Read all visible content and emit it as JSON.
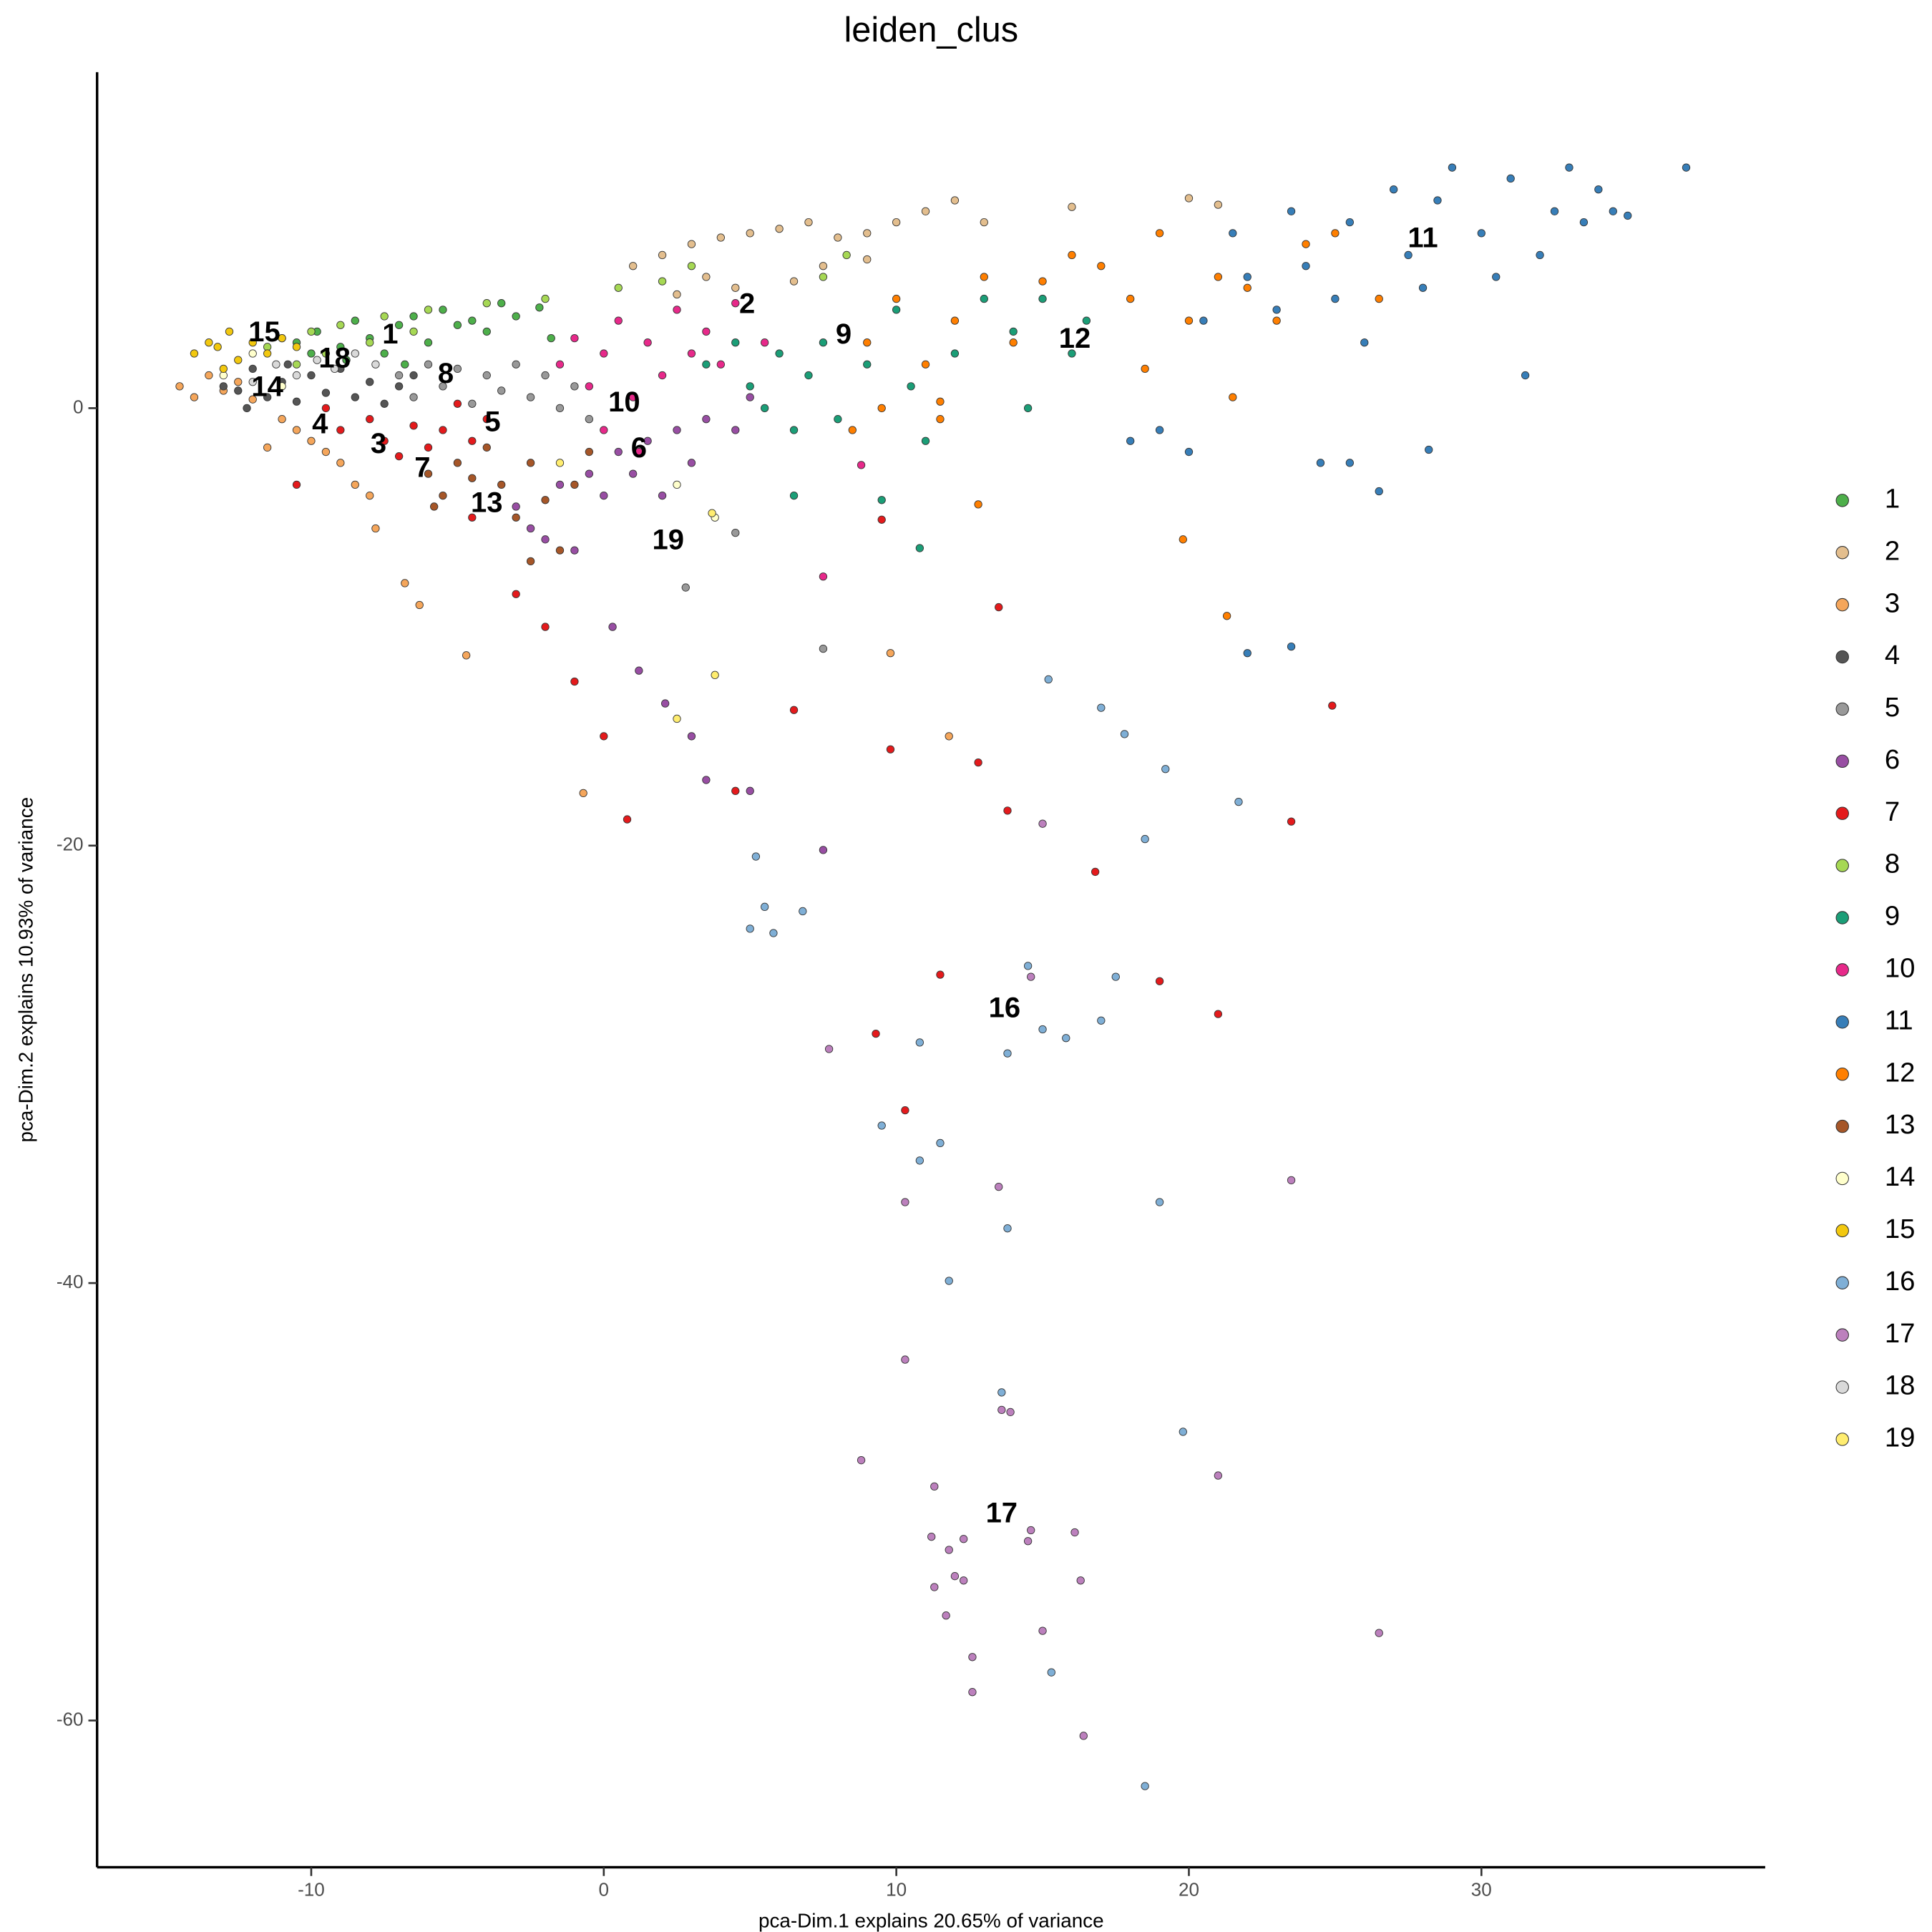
{
  "chart_data": {
    "type": "scatter",
    "title": "leiden_clus",
    "x_label": "pca-Dim.1 explains 20.65% of variance",
    "y_label": "pca-Dim.2 explains 10.93% of variance",
    "xlim": [
      -17.32,
      39.7
    ],
    "ylim": [
      -66.71,
      15.36
    ],
    "xticks": [
      -10,
      0,
      10,
      20,
      30
    ],
    "yticks": [
      0,
      -20,
      -40,
      -60
    ],
    "grid": false,
    "legend": "right",
    "series": [
      {
        "name": "1",
        "color": "#4DAF4A",
        "x": [
          -10.5,
          -9.8,
          -9,
          -8.5,
          -8,
          -7.5,
          -7,
          -6.5,
          -6,
          -5.5,
          -5,
          -4.5,
          -4,
          -3.5,
          -3,
          -2.2,
          -1.8,
          -8.8,
          -10,
          -6.8
        ],
        "y": [
          3,
          3.5,
          2.8,
          4,
          3.2,
          2.5,
          3.8,
          4.2,
          3,
          4.5,
          3.8,
          4,
          3.5,
          4.8,
          4.2,
          4.6,
          3.2,
          2.2,
          2.5,
          2
        ]
      },
      {
        "name": "2",
        "color": "#E3BE8E",
        "x": [
          1,
          2,
          3,
          4,
          5,
          6,
          7,
          8,
          9,
          10,
          11,
          12,
          13,
          16,
          20,
          21,
          4.5,
          6.5,
          3.5,
          2.5,
          7.5,
          9
        ],
        "y": [
          6.5,
          7,
          7.5,
          7.8,
          8,
          8.2,
          8.5,
          7.8,
          8,
          8.5,
          9,
          9.5,
          8.5,
          9.2,
          9.6,
          9.3,
          5.5,
          5.8,
          6,
          5.2,
          6.5,
          6.8
        ]
      },
      {
        "name": "3",
        "color": "#F5A65B",
        "x": [
          -14.5,
          -14,
          -13.5,
          -13,
          -12.5,
          -12,
          -11,
          -10.5,
          -10,
          -9.5,
          -9,
          -8.5,
          -8,
          -7.8,
          -6.8,
          -6.3,
          -4.7,
          -0.7,
          9.8,
          11.8,
          -11.5
        ],
        "y": [
          1,
          0.5,
          1.5,
          0.8,
          1.2,
          0.4,
          -0.5,
          -1,
          -1.5,
          -2,
          -2.5,
          -3.5,
          -4,
          -5.5,
          -8,
          -9,
          -11.3,
          -17.6,
          -11.2,
          -15,
          -1.8
        ]
      },
      {
        "name": "4",
        "color": "#555555",
        "x": [
          -13,
          -12.5,
          -12,
          -11.5,
          -11,
          -10.5,
          -10,
          -9.5,
          -9,
          -8.5,
          -8,
          -7.5,
          -7,
          -6.5,
          -12.2,
          -10.8
        ],
        "y": [
          1,
          0.8,
          1.8,
          0.5,
          1.2,
          0.3,
          1.5,
          0.7,
          1.8,
          0.5,
          1.2,
          0.2,
          1,
          1.5,
          0,
          2
        ]
      },
      {
        "name": "5",
        "color": "#999999",
        "x": [
          -7,
          -6.5,
          -6,
          -5.5,
          -5,
          -4.5,
          -4,
          -3.5,
          -3,
          -2.5,
          -2,
          -1.5,
          -1,
          -0.5,
          4.5,
          7.5,
          2.8
        ],
        "y": [
          1.5,
          0.5,
          2,
          1,
          1.8,
          0.2,
          1.5,
          0.8,
          2,
          0.5,
          1.5,
          0,
          1,
          -0.5,
          -5.7,
          -11,
          -8.2
        ]
      },
      {
        "name": "6",
        "color": "#984EA3",
        "x": [
          -3,
          -2.5,
          -2,
          -1.5,
          -1,
          -0.5,
          0,
          0.5,
          1,
          1.5,
          2,
          2.5,
          3,
          3.5,
          4.5,
          5,
          0.3,
          1.2,
          2.1,
          3,
          3.5,
          5,
          7.5
        ],
        "y": [
          -4.5,
          -5.5,
          -6,
          -3.5,
          -6.5,
          -3,
          -4,
          -2,
          -3,
          -1.5,
          -4,
          -1,
          -2.5,
          -0.5,
          -1,
          0.5,
          -10,
          -12,
          -13.5,
          -15,
          -17,
          -17.5,
          -20.2
        ]
      },
      {
        "name": "7",
        "color": "#E41A1C",
        "x": [
          -9.5,
          -9,
          -8,
          -7.5,
          -7,
          -6.5,
          -6,
          -5.5,
          -5,
          -4.5,
          -4,
          -10.5,
          -4.5,
          -3,
          -2,
          -1,
          0,
          0.8,
          4.5,
          6.5,
          9.8,
          11.5,
          9.3,
          10.3,
          12.8,
          13.8,
          16.8,
          19,
          21,
          23.5,
          24.9,
          13.5,
          9.5
        ],
        "y": [
          0,
          -1,
          -0.5,
          -1.5,
          -2.2,
          -0.8,
          -1.8,
          -1,
          0.2,
          -1.5,
          -0.5,
          -3.5,
          -5,
          -8.5,
          -10,
          -12.5,
          -15,
          -18.8,
          -17.5,
          -13.8,
          -15.6,
          -25.9,
          -28.6,
          -32.1,
          -16.2,
          -18.4,
          -21.2,
          -26.2,
          -27.7,
          -18.9,
          -13.6,
          -9.1,
          -5.1
        ]
      },
      {
        "name": "8",
        "color": "#A6D854",
        "x": [
          -11.5,
          -11,
          -10.5,
          -10,
          -9.5,
          -9,
          -8,
          -7.5,
          -6.5,
          -6,
          -4,
          -2,
          0.5,
          2,
          3,
          7.5,
          8.3
        ],
        "y": [
          2.8,
          3.2,
          2,
          3.5,
          2.5,
          3.8,
          3,
          4.2,
          3.5,
          4.5,
          4.8,
          5,
          5.5,
          5.8,
          6.5,
          6,
          7
        ]
      },
      {
        "name": "9",
        "color": "#1B9E77",
        "x": [
          3.5,
          4.5,
          5,
          5.5,
          6,
          6.5,
          7,
          7.5,
          8,
          9,
          10,
          10.5,
          11,
          12,
          13,
          14,
          14.5,
          15,
          16,
          16.5,
          6.5,
          9.5,
          10.8
        ],
        "y": [
          2,
          3,
          1,
          0,
          2.5,
          -1,
          1.5,
          3,
          -0.5,
          2,
          4.5,
          1,
          -1.5,
          2.5,
          5,
          3.5,
          0,
          5,
          2.5,
          4,
          -4,
          -4.2,
          -6.4
        ]
      },
      {
        "name": "10",
        "color": "#E7298A",
        "x": [
          -1.5,
          -1,
          -0.5,
          0,
          0.5,
          1,
          1.5,
          2,
          2.5,
          3,
          3.5,
          4,
          4.5,
          5.5,
          0,
          1.2,
          8.8,
          7.5
        ],
        "y": [
          2,
          3.2,
          1,
          2.5,
          4,
          0.5,
          3,
          1.5,
          4.5,
          2.5,
          3.5,
          2,
          4.8,
          3,
          -1,
          -2,
          -2.6,
          -7.7
        ]
      },
      {
        "name": "11",
        "color": "#377EB8",
        "x": [
          18,
          19,
          20,
          20.5,
          21.5,
          22,
          23,
          23.5,
          24,
          25,
          25.5,
          26,
          27,
          27.5,
          28,
          28.5,
          29,
          30,
          30.5,
          31,
          31.5,
          32,
          32.5,
          33,
          33.5,
          34,
          34.5,
          35,
          37,
          24.5,
          26.5,
          22,
          23.5,
          25.5,
          28.2
        ],
        "y": [
          -1.5,
          -1,
          -2,
          4,
          8,
          6,
          4.5,
          9,
          6.5,
          5,
          8.5,
          3,
          10,
          7,
          5.5,
          9.5,
          11,
          8,
          6,
          10.5,
          1.5,
          7,
          9,
          11,
          8.5,
          10,
          9,
          8.8,
          11,
          -2.5,
          -3.8,
          -11.2,
          -10.9,
          -2.5,
          -1.9
        ]
      },
      {
        "name": "12",
        "color": "#FF7F00",
        "x": [
          8.5,
          9,
          9.5,
          10,
          11,
          11.5,
          12,
          13,
          14,
          15,
          16,
          17,
          18,
          18.5,
          19,
          20,
          21,
          21.5,
          22,
          23,
          24,
          25,
          26.5,
          19.8,
          21.3,
          12.8,
          11.5
        ],
        "y": [
          -1,
          3,
          0,
          5,
          2,
          0.3,
          4,
          6,
          3,
          5.8,
          7,
          6.5,
          5,
          1.8,
          8,
          4,
          6,
          0.5,
          5.5,
          4,
          7.5,
          8,
          5,
          -6,
          -9.5,
          -4.4,
          -0.5
        ]
      },
      {
        "name": "13",
        "color": "#A65628",
        "x": [
          -6,
          -5.5,
          -5,
          -4.5,
          -4,
          -3.5,
          -3,
          -2.5,
          -2,
          -1.5,
          -1,
          -0.5,
          -2.5,
          -5.8
        ],
        "y": [
          -3,
          -4,
          -2.5,
          -3.2,
          -1.8,
          -3.5,
          -5,
          -2.5,
          -4.2,
          -6.5,
          -3.5,
          -2,
          -7,
          -4.5
        ]
      },
      {
        "name": "14",
        "color": "#FFFFCC",
        "x": [
          -13,
          -12,
          -11,
          3.8,
          2.5
        ],
        "y": [
          1.5,
          2.5,
          1,
          -5,
          -3.5
        ]
      },
      {
        "name": "15",
        "color": "#F2C80F",
        "x": [
          -14,
          -13.5,
          -13,
          -12.8,
          -12.5,
          -12,
          -11.5,
          -11,
          -10.5,
          -13.2
        ],
        "y": [
          2.5,
          3,
          1.8,
          3.5,
          2.2,
          3,
          2.5,
          3.2,
          2.8,
          2.8
        ]
      },
      {
        "name": "16",
        "color": "#7FAFD6",
        "x": [
          5.2,
          5.5,
          5,
          5.8,
          6.8,
          10.8,
          11.5,
          10.8,
          13.8,
          11.8,
          13.6,
          14.5,
          15,
          15.8,
          17,
          17.5,
          13.8,
          15.2,
          17,
          17.8,
          19.2,
          18.5,
          21.7,
          19,
          19.8,
          15.3,
          18.5,
          9.5
        ],
        "y": [
          -20.5,
          -22.8,
          -23.8,
          -24,
          -23,
          -29,
          -33.6,
          -34.4,
          -37.5,
          -39.9,
          -45,
          -25.5,
          -28.4,
          -28.8,
          -28,
          -26,
          -29.5,
          -12.4,
          -13.7,
          -14.9,
          -16.5,
          -19.7,
          -18,
          -36.3,
          -46.8,
          -57.8,
          -63,
          -32.8
        ]
      },
      {
        "name": "17",
        "color": "#BC80BD",
        "x": [
          15,
          13.5,
          14.6,
          7.7,
          10.3,
          10.3,
          13.6,
          13.9,
          8.8,
          11.3,
          11.2,
          11.8,
          12.3,
          14.5,
          14.6,
          16.1,
          16.3,
          12,
          12.3,
          11.3,
          11.7,
          15,
          12.6,
          12.6,
          16.4,
          21,
          23.5,
          26.5
        ],
        "y": [
          -19,
          -35.6,
          -26,
          -29.3,
          -36.3,
          -43.5,
          -45.8,
          -45.9,
          -48.1,
          -49.3,
          -51.6,
          -52.2,
          -51.7,
          -51.8,
          -51.3,
          -51.4,
          -53.6,
          -53.4,
          -53.6,
          -53.9,
          -55.2,
          -55.9,
          -57.1,
          -58.7,
          -60.7,
          -48.8,
          -35.3,
          -56
        ]
      },
      {
        "name": "18",
        "color": "#D9D9D9",
        "x": [
          -12,
          -11.2,
          -10.5,
          -9.8,
          -9.2,
          -8.5,
          -7.8
        ],
        "y": [
          1.2,
          2,
          1.5,
          2.2,
          1.8,
          2.5,
          2
        ]
      },
      {
        "name": "19",
        "color": "#FFED6F",
        "x": [
          -1.5,
          2.5,
          3.8,
          3.7
        ],
        "y": [
          -2.5,
          -14.2,
          -12.2,
          -4.8
        ]
      }
    ],
    "annotations": [
      {
        "text": "15",
        "x": -11.6,
        "y": 3.4
      },
      {
        "text": "1",
        "x": -7.3,
        "y": 3.3
      },
      {
        "text": "18",
        "x": -9.2,
        "y": 2.2
      },
      {
        "text": "14",
        "x": -11.5,
        "y": 0.9
      },
      {
        "text": "8",
        "x": -5.4,
        "y": 1.5
      },
      {
        "text": "4",
        "x": -9.7,
        "y": -0.8
      },
      {
        "text": "3",
        "x": -7.7,
        "y": -1.7
      },
      {
        "text": "5",
        "x": -3.8,
        "y": -0.7
      },
      {
        "text": "10",
        "x": 0.7,
        "y": 0.2
      },
      {
        "text": "7",
        "x": -6.2,
        "y": -2.8
      },
      {
        "text": "6",
        "x": 1.2,
        "y": -1.9
      },
      {
        "text": "13",
        "x": -4.0,
        "y": -4.4
      },
      {
        "text": "19",
        "x": 2.2,
        "y": -6.1
      },
      {
        "text": "2",
        "x": 4.9,
        "y": 4.7
      },
      {
        "text": "9",
        "x": 8.2,
        "y": 3.3
      },
      {
        "text": "12",
        "x": 16.1,
        "y": 3.1
      },
      {
        "text": "11",
        "x": 28.0,
        "y": 7.7
      },
      {
        "text": "16",
        "x": 13.7,
        "y": -27.5
      },
      {
        "text": "17",
        "x": 13.6,
        "y": -50.6
      }
    ]
  }
}
